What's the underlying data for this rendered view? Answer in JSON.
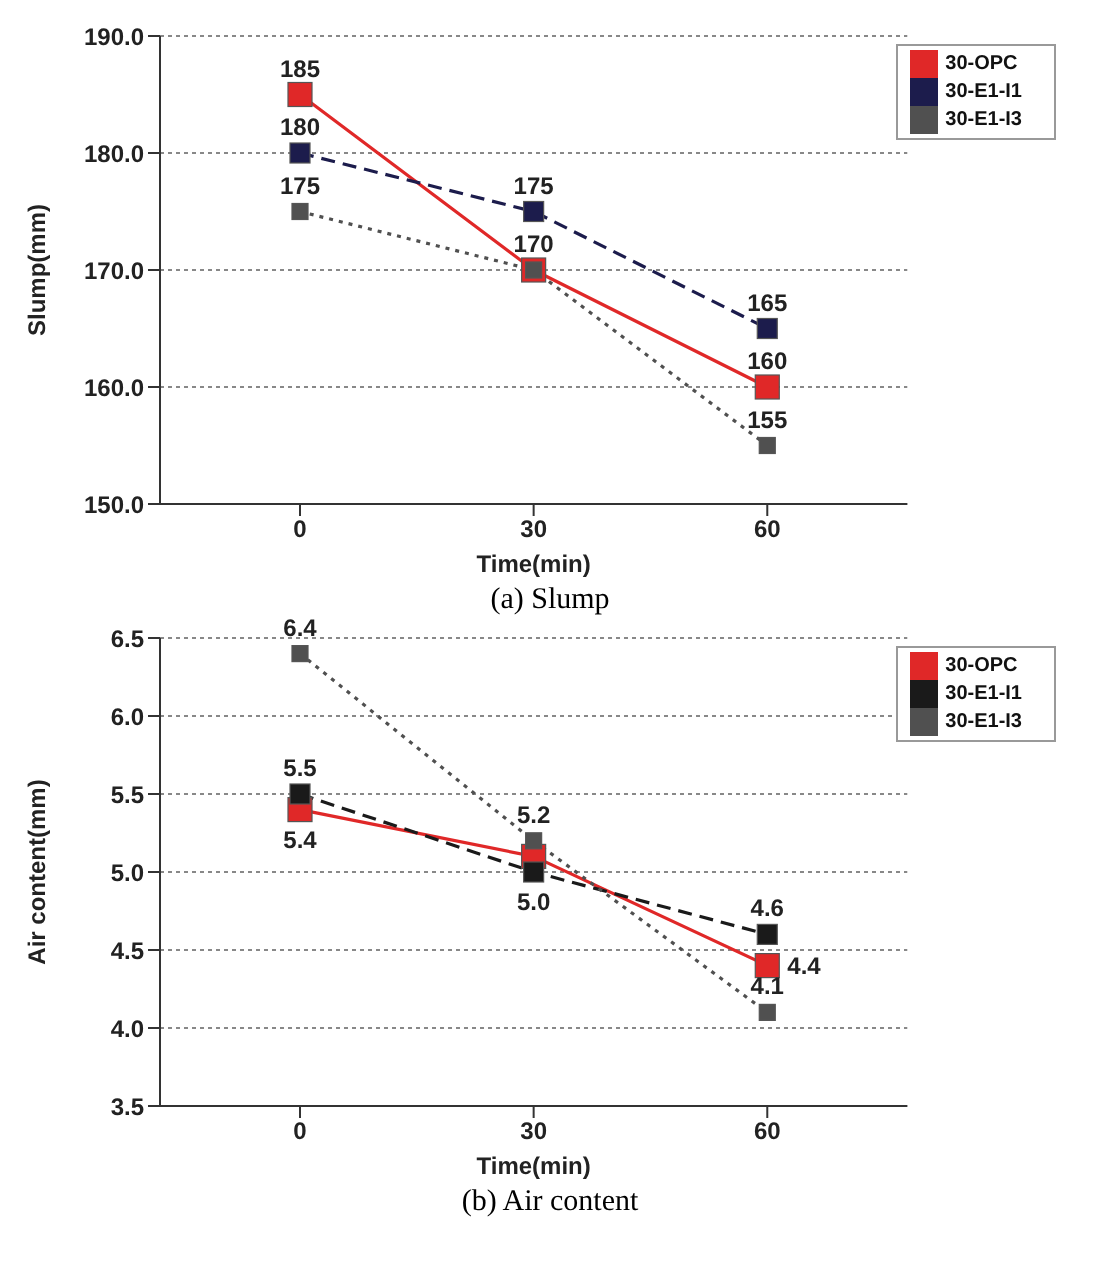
{
  "chart_data": [
    {
      "type": "line",
      "categories": [
        "0",
        "30",
        "60"
      ],
      "xlabel": "Time(min)",
      "ylabel": "Slump(mm)",
      "ylim": [
        150,
        190
      ],
      "yticks": [
        {
          "value": 150,
          "label": "150.0"
        },
        {
          "value": 160,
          "label": "160.0"
        },
        {
          "value": 170,
          "label": "170.0"
        },
        {
          "value": 180,
          "label": "180.0"
        },
        {
          "value": 190,
          "label": "190.0"
        }
      ],
      "grid": "y",
      "legend": "top right",
      "marker": "square",
      "annotations": [
        "(a)  Slump"
      ],
      "series": [
        {
          "name": "30-OPC",
          "color": "#e02828",
          "line_style": "solid",
          "values": [
            185,
            170,
            160
          ],
          "value_labels": [
            "185",
            null,
            "160"
          ]
        },
        {
          "name": "30-E1-I1",
          "color": "#1c1c4c",
          "line_style": "dashed",
          "values": [
            180,
            175,
            165
          ],
          "value_labels": [
            "180",
            "175",
            "165"
          ]
        },
        {
          "name": "30-E1-I3",
          "color": "#505050",
          "line_style": "dotted",
          "values": [
            175,
            170,
            155
          ],
          "value_labels": [
            "175",
            "170",
            "155"
          ]
        }
      ]
    },
    {
      "type": "line",
      "categories": [
        "0",
        "30",
        "60"
      ],
      "xlabel": "Time(min)",
      "ylabel": "Air content(mm)",
      "ylim": [
        3.5,
        6.5
      ],
      "yticks": [
        3.5,
        {
          "value": 4,
          "label": "4.0"
        },
        4.5,
        {
          "value": 5,
          "label": "5.0"
        },
        5.5,
        {
          "value": 6,
          "label": "6.0"
        },
        6.5
      ],
      "grid": "y",
      "legend": "top right",
      "marker": "square",
      "annotations": [
        "(b)  Air  content"
      ],
      "series": [
        {
          "name": "30-OPC",
          "color": "#e02828",
          "line_style": "solid",
          "values": [
            5.4,
            5.1,
            4.4
          ],
          "value_labels": [
            "5.4",
            null,
            "4.4"
          ]
        },
        {
          "name": "30-E1-I1",
          "color": "#1a1a1a",
          "line_style": "dashed",
          "values": [
            5.5,
            5.0,
            4.6
          ],
          "value_labels": [
            "5.5",
            "5.0",
            "4.6"
          ]
        },
        {
          "name": "30-E1-I3",
          "color": "#505050",
          "line_style": "dotted",
          "values": [
            6.4,
            5.2,
            4.1
          ],
          "value_labels": [
            "6.4",
            "5.2",
            "4.1"
          ]
        }
      ]
    }
  ]
}
